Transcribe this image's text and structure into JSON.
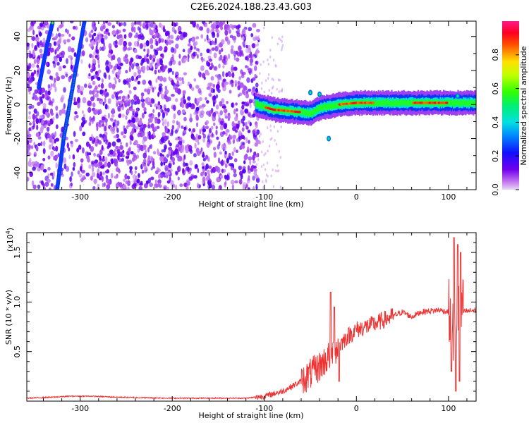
{
  "title": "C2E6.2024.188.23.43.G03",
  "chart_data": [
    {
      "type": "heatmap",
      "xlabel": "Height of straight line (km)",
      "ylabel": "Frequency (Hz)",
      "xlim": [
        -358,
        130
      ],
      "ylim": [
        -50,
        49
      ],
      "x_ticks": [
        -300,
        -200,
        -100,
        0,
        100
      ],
      "y_ticks": [
        -40,
        -20,
        0,
        20,
        40
      ],
      "colorbar": {
        "label": "Normalized spectral amplitude",
        "range": [
          0.0,
          1.0
        ],
        "ticks": [
          "0.0",
          "0.2",
          "0.4",
          "0.6",
          "0.8"
        ],
        "tick_values": [
          0.0,
          0.2,
          0.4,
          0.6,
          0.8
        ]
      },
      "features": {
        "noise_region_x": [
          -358,
          -110
        ],
        "steep_line_a": [
          [
            -345,
            10
          ],
          [
            -336,
            35
          ],
          [
            -330,
            48
          ]
        ],
        "steep_line_b": [
          [
            -325,
            -50
          ],
          [
            -318,
            -20
          ],
          [
            -305,
            20
          ],
          [
            -295,
            50
          ]
        ],
        "band_center": [
          [
            -110,
            0
          ],
          [
            -90,
            -3
          ],
          [
            -70,
            -4
          ],
          [
            -50,
            -5
          ],
          [
            -40,
            -2
          ],
          [
            -20,
            0
          ],
          [
            0,
            1
          ],
          [
            50,
            1
          ],
          [
            100,
            1
          ],
          [
            130,
            1
          ]
        ],
        "band_peak_x": [
          -80,
          0,
          80
        ]
      }
    },
    {
      "type": "line",
      "xlabel": "Height of straight line (km)",
      "ylabel": "SNR (10 * v/v)",
      "y_scale_label": "(x10",
      "y_scale_exp": "4",
      "y_scale_close": ")",
      "xlim": [
        -358,
        130
      ],
      "ylim": [
        0,
        1.7
      ],
      "x_ticks": [
        -300,
        -200,
        -100,
        0,
        100
      ],
      "y_ticks": [
        0.5,
        1.0,
        1.5
      ],
      "y_tick_labels": [
        "0.5",
        "1.0",
        "1.5"
      ],
      "color": "#ee3333",
      "series_knots": [
        [
          -358,
          0.03
        ],
        [
          -330,
          0.04
        ],
        [
          -310,
          0.05
        ],
        [
          -290,
          0.05
        ],
        [
          -260,
          0.04
        ],
        [
          -200,
          0.03
        ],
        [
          -150,
          0.03
        ],
        [
          -120,
          0.03
        ],
        [
          -100,
          0.05
        ],
        [
          -80,
          0.1
        ],
        [
          -60,
          0.2
        ],
        [
          -40,
          0.35
        ],
        [
          -30,
          0.45
        ],
        [
          -25,
          0.5
        ],
        [
          -20,
          0.55
        ],
        [
          -10,
          0.65
        ],
        [
          0,
          0.72
        ],
        [
          20,
          0.78
        ],
        [
          30,
          0.82
        ],
        [
          40,
          0.86
        ],
        [
          50,
          0.9
        ],
        [
          60,
          0.85
        ],
        [
          70,
          0.9
        ],
        [
          90,
          0.92
        ],
        [
          100,
          0.9
        ],
        [
          105,
          0.7
        ],
        [
          110,
          0.95
        ],
        [
          115,
          0.9
        ],
        [
          130,
          0.92
        ]
      ],
      "spikes": [
        [
          -28,
          1.1
        ],
        [
          -24,
          0.95
        ],
        [
          -19,
          0.2
        ],
        [
          103,
          0.3
        ],
        [
          106,
          1.65
        ],
        [
          108,
          0.1
        ],
        [
          110,
          1.58
        ],
        [
          112,
          0.2
        ],
        [
          113,
          1.5
        ]
      ]
    }
  ]
}
